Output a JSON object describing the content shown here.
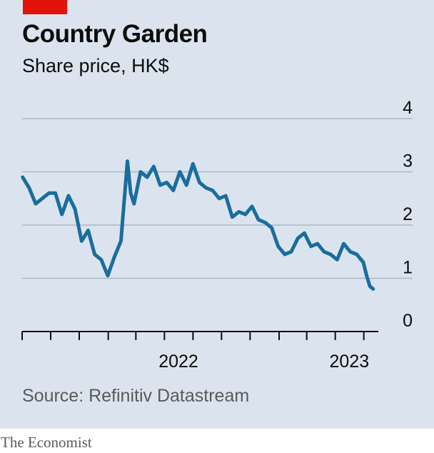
{
  "header": {
    "title": "Country Garden",
    "subtitle": "Share price, HK$"
  },
  "footer": {
    "source": "Source: Refinitiv Datastream",
    "brand": "The Economist"
  },
  "colors": {
    "background": "#dbe4ee",
    "line": "#1a6d9e",
    "accent": "#e3120b",
    "gridline": "#a9b8c6",
    "axis": "#0c0c0c"
  },
  "chart_data": {
    "type": "line",
    "title": "Country Garden",
    "subtitle": "Share price, HK$",
    "ylim": [
      0,
      4
    ],
    "yticks": [
      0,
      1,
      2,
      3,
      4
    ],
    "grid": true,
    "xlim": [
      "2021-08",
      "2023-10"
    ],
    "x_tick_labels": [
      "2022",
      "2023"
    ],
    "series": [
      {
        "x": [
          "2021-08-02",
          "2021-08-16",
          "2021-08-30",
          "2021-09-13",
          "2021-09-27",
          "2021-10-11",
          "2021-10-25",
          "2021-11-08",
          "2021-11-22",
          "2021-12-06",
          "2021-12-20",
          "2022-01-03",
          "2022-01-17",
          "2022-01-31",
          "2022-02-14",
          "2022-02-28",
          "2022-03-14",
          "2022-03-21",
          "2022-03-28",
          "2022-04-11",
          "2022-04-25",
          "2022-05-09",
          "2022-05-23",
          "2022-06-06",
          "2022-06-20",
          "2022-07-04",
          "2022-07-18",
          "2022-08-01",
          "2022-08-15",
          "2022-08-29",
          "2022-09-12",
          "2022-09-26",
          "2022-10-10",
          "2022-10-24",
          "2022-11-07",
          "2022-11-21",
          "2022-12-05",
          "2022-12-19",
          "2023-01-02",
          "2023-01-16",
          "2023-01-30",
          "2023-02-13",
          "2023-02-27",
          "2023-03-13",
          "2023-03-27",
          "2023-04-10",
          "2023-04-24",
          "2023-05-08",
          "2023-05-22",
          "2023-06-05",
          "2023-06-19",
          "2023-07-03",
          "2023-07-17",
          "2023-07-31",
          "2023-08-07",
          "2023-08-14",
          "2023-08-21"
        ],
        "values": [
          2.9,
          2.7,
          2.4,
          2.5,
          2.6,
          2.6,
          2.2,
          2.55,
          2.3,
          1.7,
          1.9,
          1.45,
          1.35,
          1.05,
          1.4,
          1.7,
          3.2,
          2.6,
          2.4,
          3.0,
          2.9,
          3.1,
          2.75,
          2.8,
          2.65,
          3.0,
          2.75,
          3.15,
          2.8,
          2.7,
          2.65,
          2.5,
          2.55,
          2.15,
          2.25,
          2.2,
          2.35,
          2.1,
          2.05,
          1.95,
          1.6,
          1.45,
          1.5,
          1.75,
          1.85,
          1.6,
          1.65,
          1.5,
          1.45,
          1.35,
          1.65,
          1.5,
          1.45,
          1.3,
          1.05,
          0.85,
          0.8
        ]
      }
    ]
  }
}
